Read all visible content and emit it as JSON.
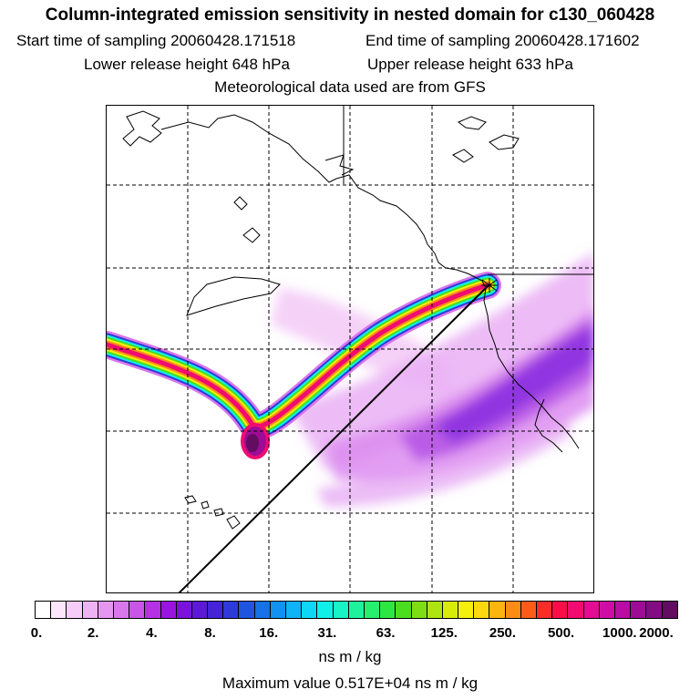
{
  "header": {
    "title": "Column-integrated emission sensitivity in nested domain for c130_060428",
    "start_label": "Start time of sampling",
    "start_value": "20060428.171518",
    "end_label": "End time of sampling",
    "end_value": "20060428.171602",
    "lower_label": "Lower release height",
    "lower_value": "648 hPa",
    "upper_label": "Upper release height",
    "upper_value": "633 hPa",
    "met_line": "Meteorological data used are from GFS"
  },
  "colorbar": {
    "tick_labels": [
      "0.",
      "2.",
      "4.",
      "8.",
      "16.",
      "31.",
      "63.",
      "125.",
      "250.",
      "500.",
      "1000.",
      "2000."
    ],
    "colors": [
      "#ffffff",
      "#fbe6fb",
      "#f6cdf8",
      "#eeb3f4",
      "#e596f0",
      "#d877ec",
      "#c955e8",
      "#b531e4",
      "#9a14e0",
      "#7a12dc",
      "#5e18d8",
      "#4424d6",
      "#2f3ad8",
      "#1f55de",
      "#1672e6",
      "#1192ee",
      "#0eb4f4",
      "#0ed6f6",
      "#10f0ea",
      "#18f4c6",
      "#20f29c",
      "#26ee6e",
      "#2ee642",
      "#4ade1e",
      "#7ede16",
      "#aee410",
      "#d8ec0c",
      "#f4f00c",
      "#fcd80e",
      "#fcb410",
      "#fc8c14",
      "#fc5c18",
      "#fc2c28",
      "#f80e48",
      "#f00c70",
      "#e40c92",
      "#d00ca6",
      "#b80ca4",
      "#9e0c96",
      "#820c82",
      "#620c62"
    ],
    "units": "ns m / kg",
    "max_label": "Maximum value",
    "max_value": "0.517E+04 ns m / kg"
  },
  "map": {
    "grid": "dashed",
    "plume_colors": {
      "low": "#e7a6f3",
      "mid": "#a43bd9",
      "high_outer": "#f4f41a",
      "high_core": "#c0106a"
    },
    "release_marker": "star"
  }
}
